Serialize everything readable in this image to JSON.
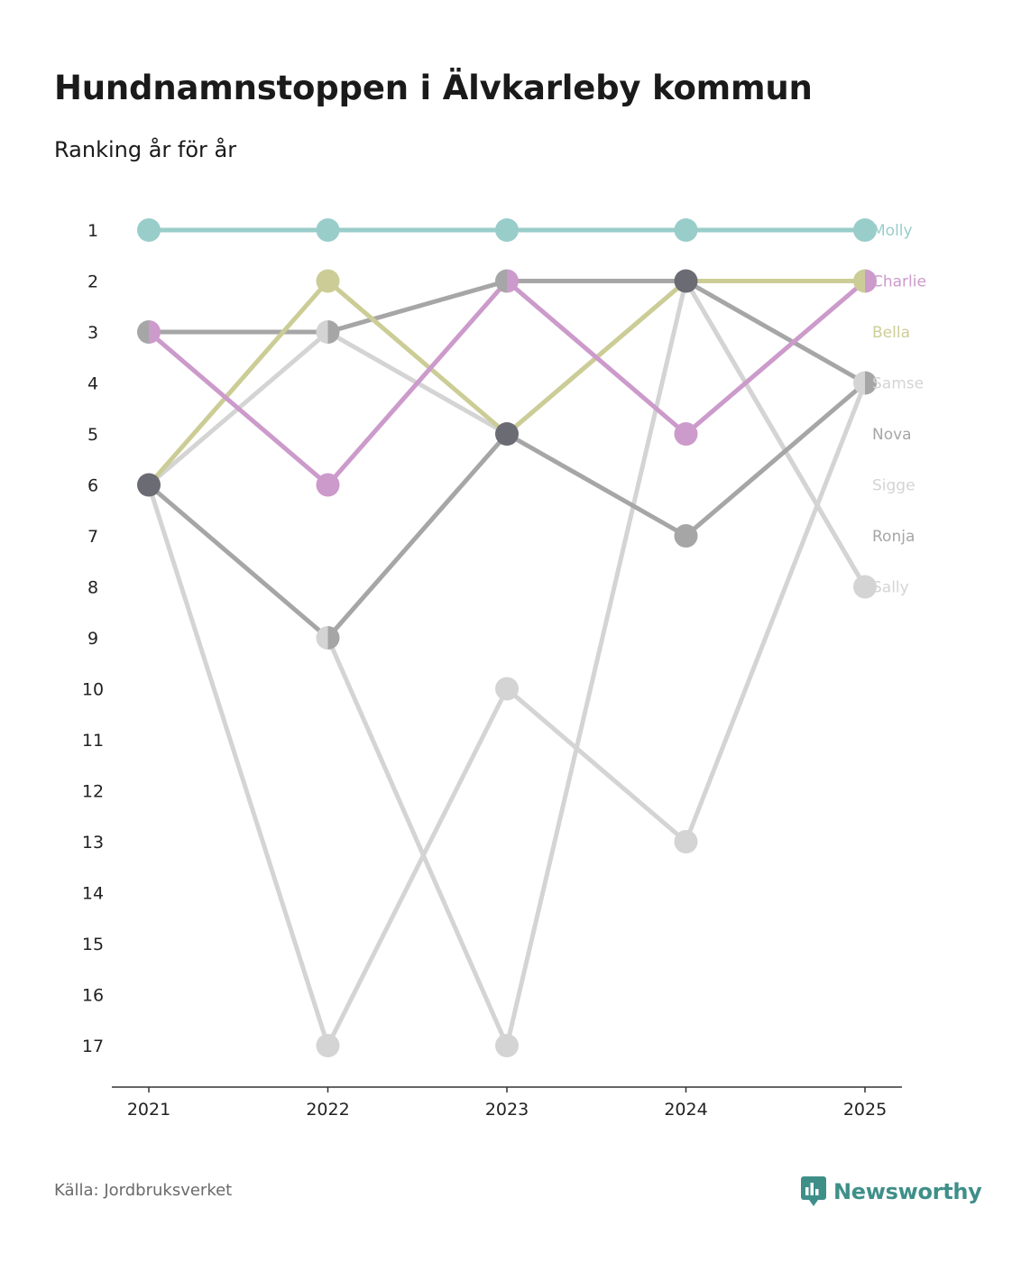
{
  "title": "Hundnamnstoppen i Älvkarleby kommun",
  "subtitle": "Ranking år för år",
  "source": "Källa: Jordbruksverket",
  "brand": {
    "name": "Newsworthy",
    "icon": "newsworthy-logo-icon",
    "color": "#3f8f89"
  },
  "chart_data": {
    "type": "line",
    "subtype": "bump",
    "title": "Hundnamnstoppen i Älvkarleby kommun",
    "subtitle": "Ranking år för år",
    "x": [
      "2021",
      "2022",
      "2023",
      "2024",
      "2025"
    ],
    "ylim": [
      1,
      17
    ],
    "y_inverted": true,
    "yticks": [
      1,
      2,
      3,
      4,
      5,
      6,
      7,
      8,
      9,
      10,
      11,
      12,
      13,
      14,
      15,
      16,
      17
    ],
    "grid": false,
    "series": [
      {
        "name": "Sigge",
        "color": "#d4d4d4",
        "values": [
          6,
          3,
          5,
          2,
          8
        ]
      },
      {
        "name": "Sally",
        "color": "#d4d4d4",
        "values": [
          6,
          17,
          10,
          13,
          4
        ]
      },
      {
        "name": "Samse",
        "color": "#d4d4d4",
        "values": [
          null,
          9,
          17,
          2,
          8
        ]
      },
      {
        "name": "Ronja",
        "color": "#a6a6a6",
        "values": [
          3,
          3,
          2,
          2,
          4
        ]
      },
      {
        "name": "Nova",
        "color": "#a6a6a6",
        "values": [
          6,
          9,
          5,
          7,
          4
        ]
      },
      {
        "name": "Bella",
        "color": "#cccd96",
        "values": [
          6,
          2,
          5,
          2,
          2
        ]
      },
      {
        "name": "Charlie",
        "color": "#cc9acb",
        "values": [
          3,
          6,
          2,
          5,
          2
        ]
      },
      {
        "name": "Molly",
        "color": "#99cdca",
        "values": [
          1,
          1,
          1,
          1,
          1
        ]
      }
    ],
    "shared_marker_color": "#6b6b73",
    "legend": {
      "placement": "right",
      "entries": [
        {
          "label": "Molly",
          "color": "#99cdca",
          "rank": 1
        },
        {
          "label": "Charlie",
          "color": "#cc9acb",
          "rank": 2
        },
        {
          "label": "Bella",
          "color": "#cccd96",
          "rank": 3
        },
        {
          "label": "Samse",
          "color": "#d4d4d4",
          "rank": 4
        },
        {
          "label": "Nova",
          "color": "#a6a6a6",
          "rank": 5
        },
        {
          "label": "Sigge",
          "color": "#d4d4d4",
          "rank": 6
        },
        {
          "label": "Ronja",
          "color": "#a6a6a6",
          "rank": 7
        },
        {
          "label": "Sally",
          "color": "#d4d4d4",
          "rank": 8
        }
      ]
    }
  }
}
